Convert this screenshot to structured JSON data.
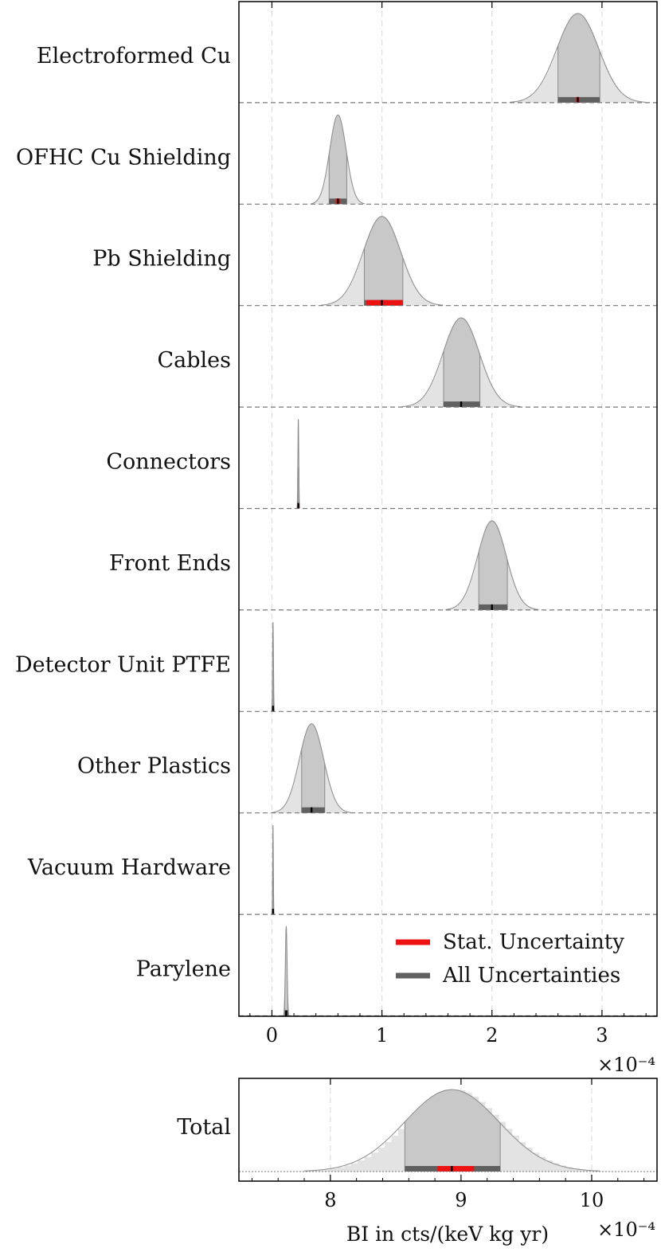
{
  "chart_data": [
    {
      "type": "area",
      "x_scale_label": "×10⁻⁴",
      "xlim": [
        -0.3,
        3.5
      ],
      "x_ticks": [
        0,
        1,
        2,
        3
      ],
      "x_tick_labels": [
        "0",
        "1",
        "2",
        "3"
      ],
      "grid": true,
      "legend_position": "lower-right",
      "legend": [
        {
          "label": "Stat. Uncertainty",
          "color": "#ee1111"
        },
        {
          "label": "All Uncertainties",
          "color": "#606060"
        }
      ],
      "colors": {
        "outer_fill": "#e3e3e3",
        "inner_fill": "#c8c8c8",
        "outline": "#8a8a8a",
        "stat_bar": "#ee1111",
        "all_bar": "#606060",
        "median": "#000000",
        "baseline": "#777777",
        "grid": "#dddddd"
      },
      "series": [
        {
          "name": "Electroformed Cu",
          "mean": 2.78,
          "sigma": 0.19,
          "all_unc": [
            2.6,
            2.98
          ],
          "stat_unc": [
            2.765,
            2.795
          ],
          "median": 2.78
        },
        {
          "name": "OFHC Cu Shielding",
          "mean": 0.6,
          "sigma": 0.075,
          "all_unc": [
            0.52,
            0.68
          ],
          "stat_unc": [
            0.58,
            0.62
          ],
          "median": 0.6
        },
        {
          "name": "Pb Shielding",
          "mean": 1.0,
          "sigma": 0.17,
          "all_unc": [
            0.84,
            1.19
          ],
          "stat_unc": [
            0.86,
            1.19
          ],
          "median": 1.0
        },
        {
          "name": "Cables",
          "mean": 1.72,
          "sigma": 0.165,
          "all_unc": [
            1.56,
            1.89
          ],
          "stat_unc": [
            1.715,
            1.725
          ],
          "median": 1.72
        },
        {
          "name": "Connectors",
          "mean": 0.24,
          "sigma": 0.004,
          "all_unc": [
            0.235,
            0.245
          ],
          "stat_unc": [
            0.238,
            0.242
          ],
          "median": 0.24
        },
        {
          "name": "Front Ends",
          "mean": 2.0,
          "sigma": 0.13,
          "all_unc": [
            1.88,
            2.14
          ],
          "stat_unc": [
            1.995,
            2.005
          ],
          "median": 2.0
        },
        {
          "name": "Detector Unit PTFE",
          "mean": 0.01,
          "sigma": 0.004,
          "all_unc": [
            0.005,
            0.015
          ],
          "stat_unc": [
            0.008,
            0.012
          ],
          "median": 0.01
        },
        {
          "name": "Other Plastics",
          "mean": 0.36,
          "sigma": 0.11,
          "all_unc": [
            0.27,
            0.48
          ],
          "stat_unc": [
            0.355,
            0.365
          ],
          "median": 0.36
        },
        {
          "name": "Vacuum Hardware",
          "mean": 0.01,
          "sigma": 0.003,
          "all_unc": [
            0.006,
            0.014
          ],
          "stat_unc": [
            0.008,
            0.012
          ],
          "median": 0.01
        },
        {
          "name": "Parylene",
          "mean": 0.13,
          "sigma": 0.008,
          "all_unc": [
            0.115,
            0.145
          ],
          "stat_unc": [
            0.128,
            0.132
          ],
          "median": 0.13
        }
      ]
    },
    {
      "type": "area",
      "x_scale_label": "×10⁻⁴",
      "xlabel": "BI in cts/(keV kg yr)",
      "xlim": [
        7.3,
        10.5
      ],
      "x_ticks": [
        8,
        9,
        10
      ],
      "x_tick_labels": [
        "8",
        "9",
        "10"
      ],
      "grid": true,
      "series": [
        {
          "name": "Total",
          "mean": 8.93,
          "sigma": 0.36,
          "all_unc": [
            8.57,
            9.3
          ],
          "stat_unc": [
            8.82,
            9.1
          ],
          "median": 8.93
        }
      ]
    }
  ]
}
